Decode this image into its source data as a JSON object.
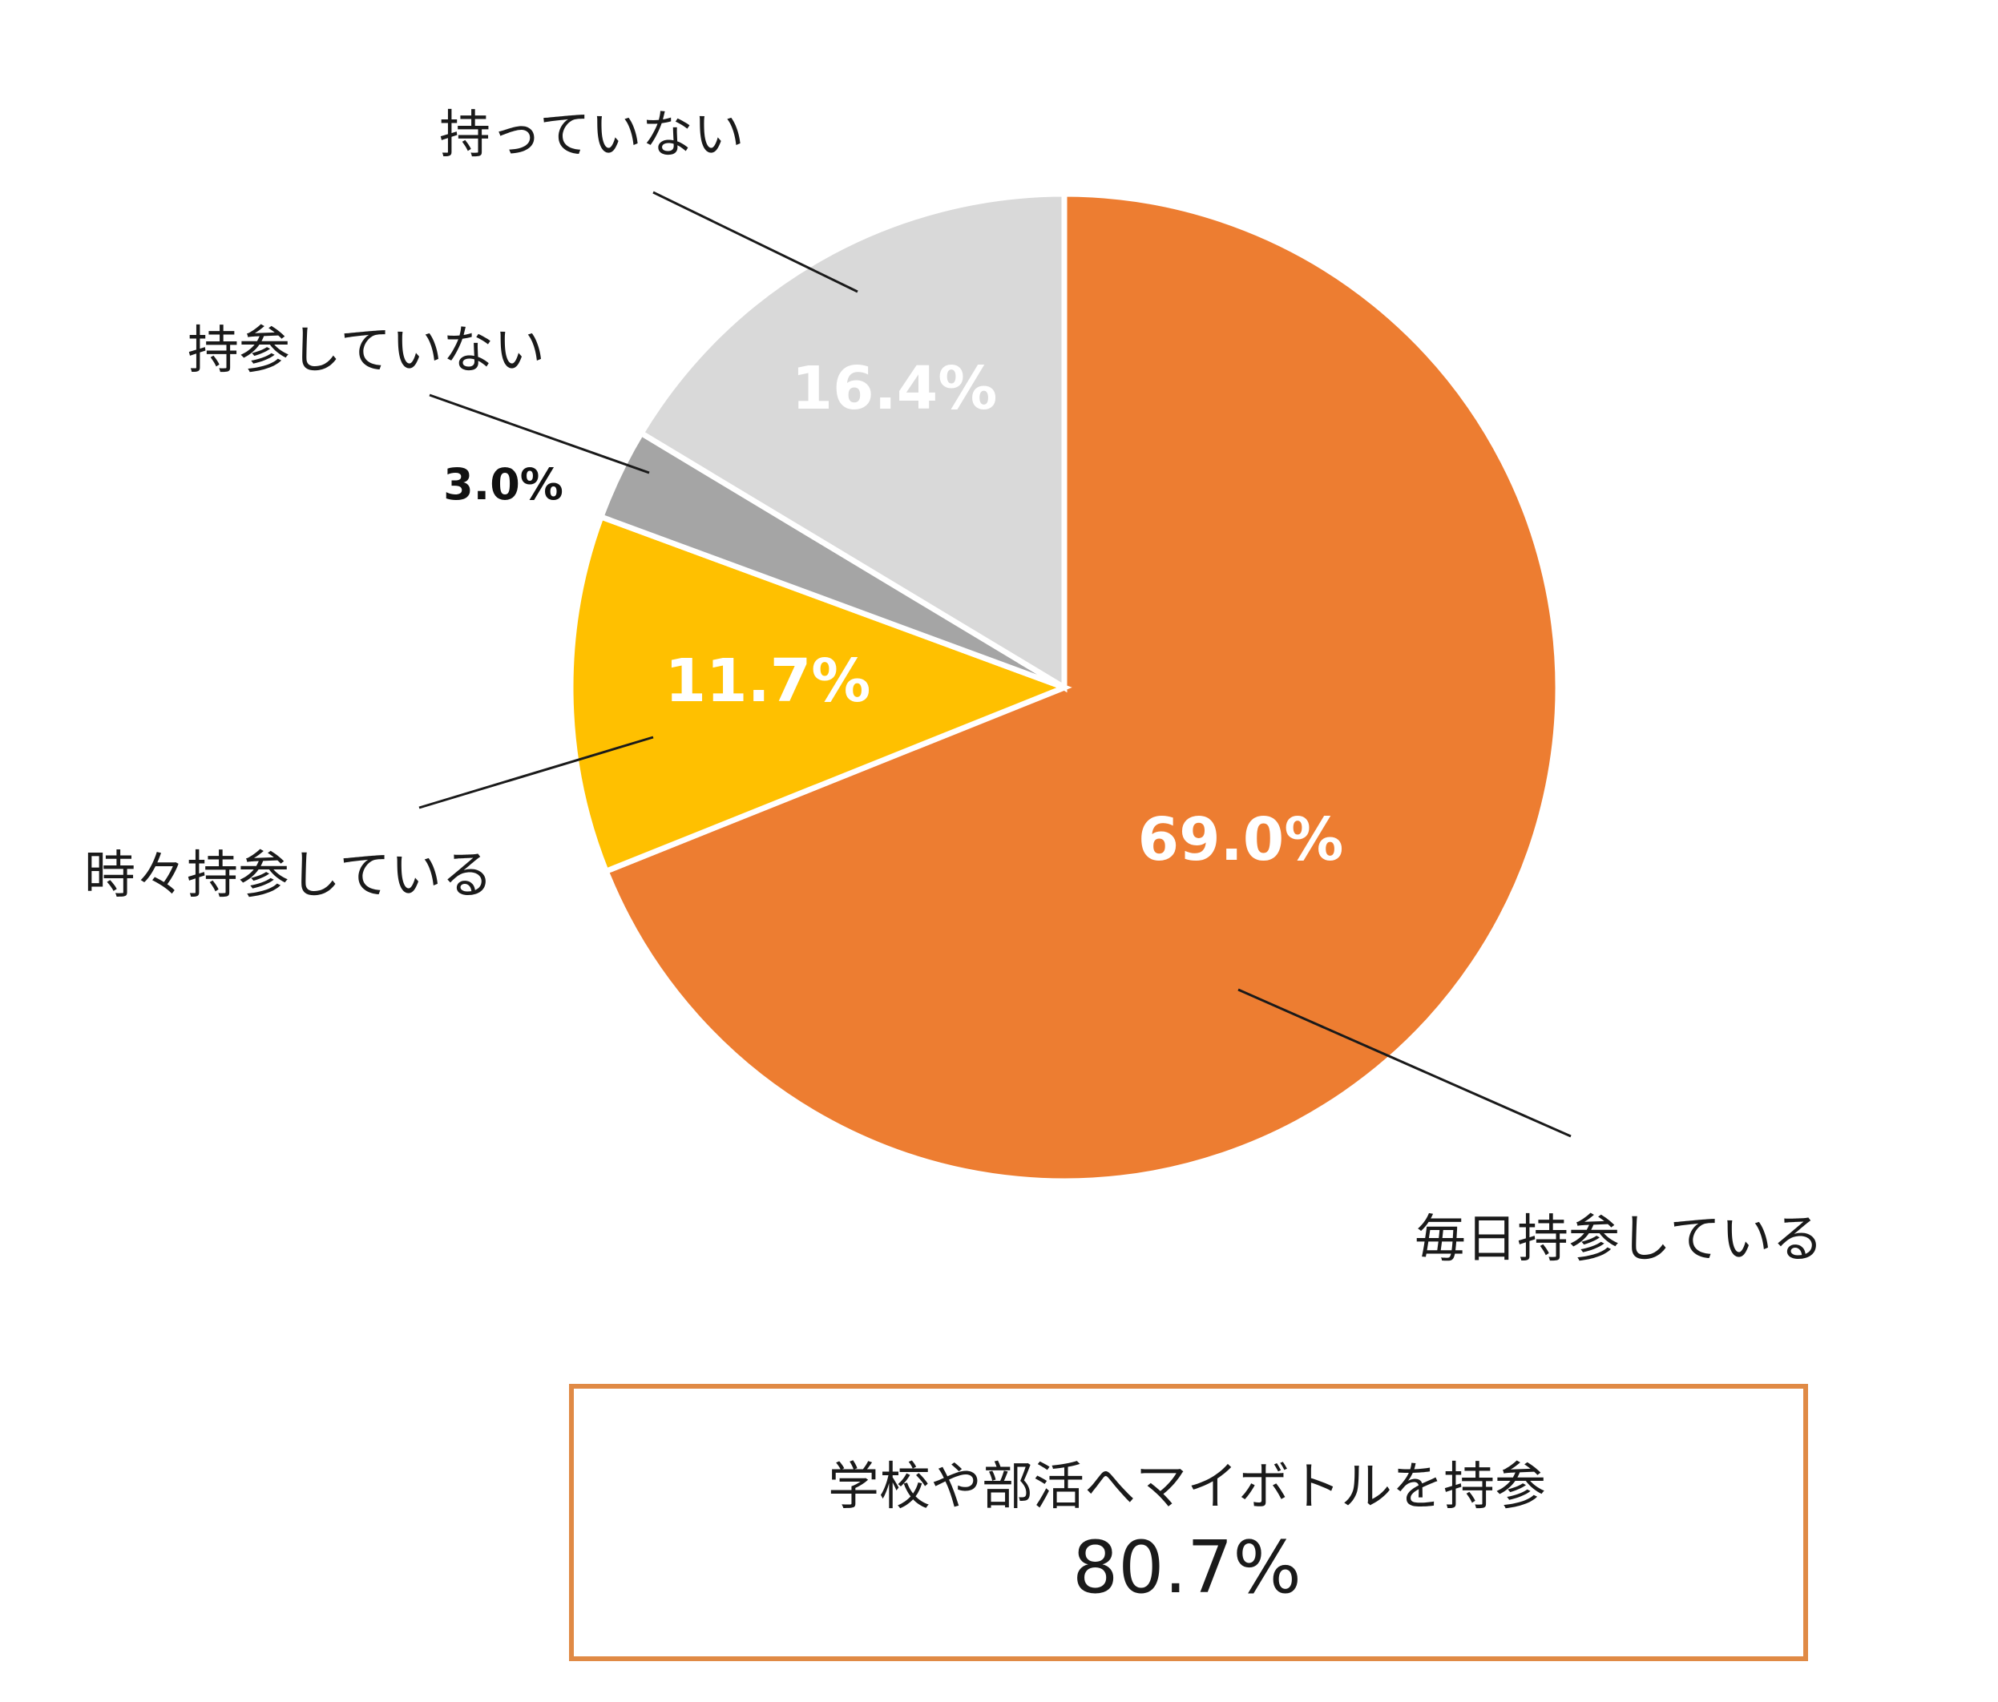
{
  "chart_data": {
    "type": "pie",
    "categories": [
      "毎日持参している",
      "時々持参している",
      "持参していない",
      "持っていない"
    ],
    "values": [
      69.0,
      11.7,
      3.0,
      16.4
    ],
    "value_labels": [
      "69.0%",
      "11.7%",
      "3.0%",
      "16.4%"
    ],
    "colors": [
      "#ED7D31",
      "#FFC000",
      "#A5A5A5",
      "#D9D9D9"
    ],
    "start": "12 o'clock",
    "direction": "clockwise"
  },
  "summary": {
    "text": "学校や部活へマイボトルを持参",
    "value": "80.7%",
    "border_color": "#E08A45"
  }
}
